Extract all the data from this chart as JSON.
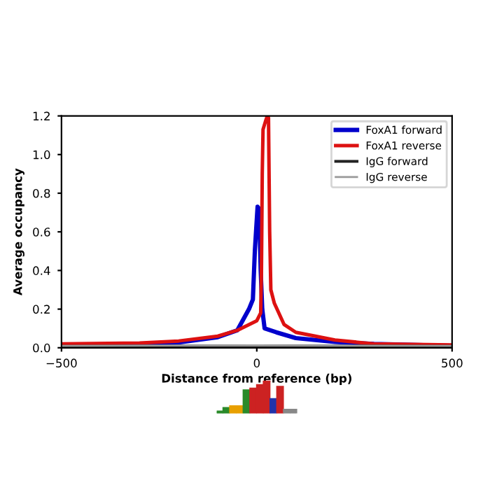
{
  "chart_data": {
    "type": "line",
    "xlabel": "Distance from reference (bp)",
    "ylabel": "Average occupancy",
    "xlim": [
      -500,
      500
    ],
    "xticks": [
      {
        "value": -500,
        "label": "−500"
      },
      0,
      500
    ],
    "ylim": [
      0,
      1.2
    ],
    "yticks": [
      {
        "value": 0,
        "label": "0.0"
      },
      {
        "value": 0.2,
        "label": "0.2"
      },
      {
        "value": 0.4,
        "label": "0.4"
      },
      {
        "value": 0.6,
        "label": "0.6"
      },
      {
        "value": 0.8,
        "label": "0.8"
      },
      {
        "value": 1.0,
        "label": "1.0"
      },
      {
        "value": 1.2,
        "label": "1.2"
      }
    ],
    "legend": "top right",
    "grid": false,
    "marker": "none",
    "line_style": "solid",
    "series": [
      {
        "name": "FoxA1 forward",
        "color": "#0000cc",
        "x": [
          -500,
          -300,
          -200,
          -100,
          -50,
          -20,
          -10,
          -5,
          -2,
          2,
          6,
          10,
          14,
          20,
          50,
          100,
          200,
          300,
          500
        ],
        "values": [
          0.01,
          0.018,
          0.027,
          0.055,
          0.09,
          0.2,
          0.25,
          0.5,
          0.6,
          0.73,
          0.72,
          0.4,
          0.2,
          0.1,
          0.08,
          0.05,
          0.03,
          0.02,
          0.01
        ]
      },
      {
        "name": "FoxA1 reverse",
        "color": "#dd1111",
        "x": [
          -500,
          -300,
          -200,
          -100,
          -50,
          0,
          10,
          12,
          14,
          16,
          22,
          27,
          30,
          33,
          36,
          45,
          70,
          100,
          200,
          300,
          500
        ],
        "values": [
          0.02,
          0.025,
          0.035,
          0.06,
          0.09,
          0.14,
          0.18,
          0.4,
          0.9,
          1.13,
          1.17,
          1.2,
          1.19,
          0.6,
          0.3,
          0.23,
          0.12,
          0.08,
          0.04,
          0.02,
          0.015
        ]
      },
      {
        "name": "IgG forward",
        "color": "#222222",
        "x": [
          -500,
          0,
          500
        ],
        "values": [
          0.008,
          0.01,
          0.008
        ]
      },
      {
        "name": "IgG reverse",
        "color": "#999999",
        "x": [
          -500,
          0,
          500
        ],
        "values": [
          0.01,
          0.012,
          0.01
        ]
      }
    ]
  }
}
